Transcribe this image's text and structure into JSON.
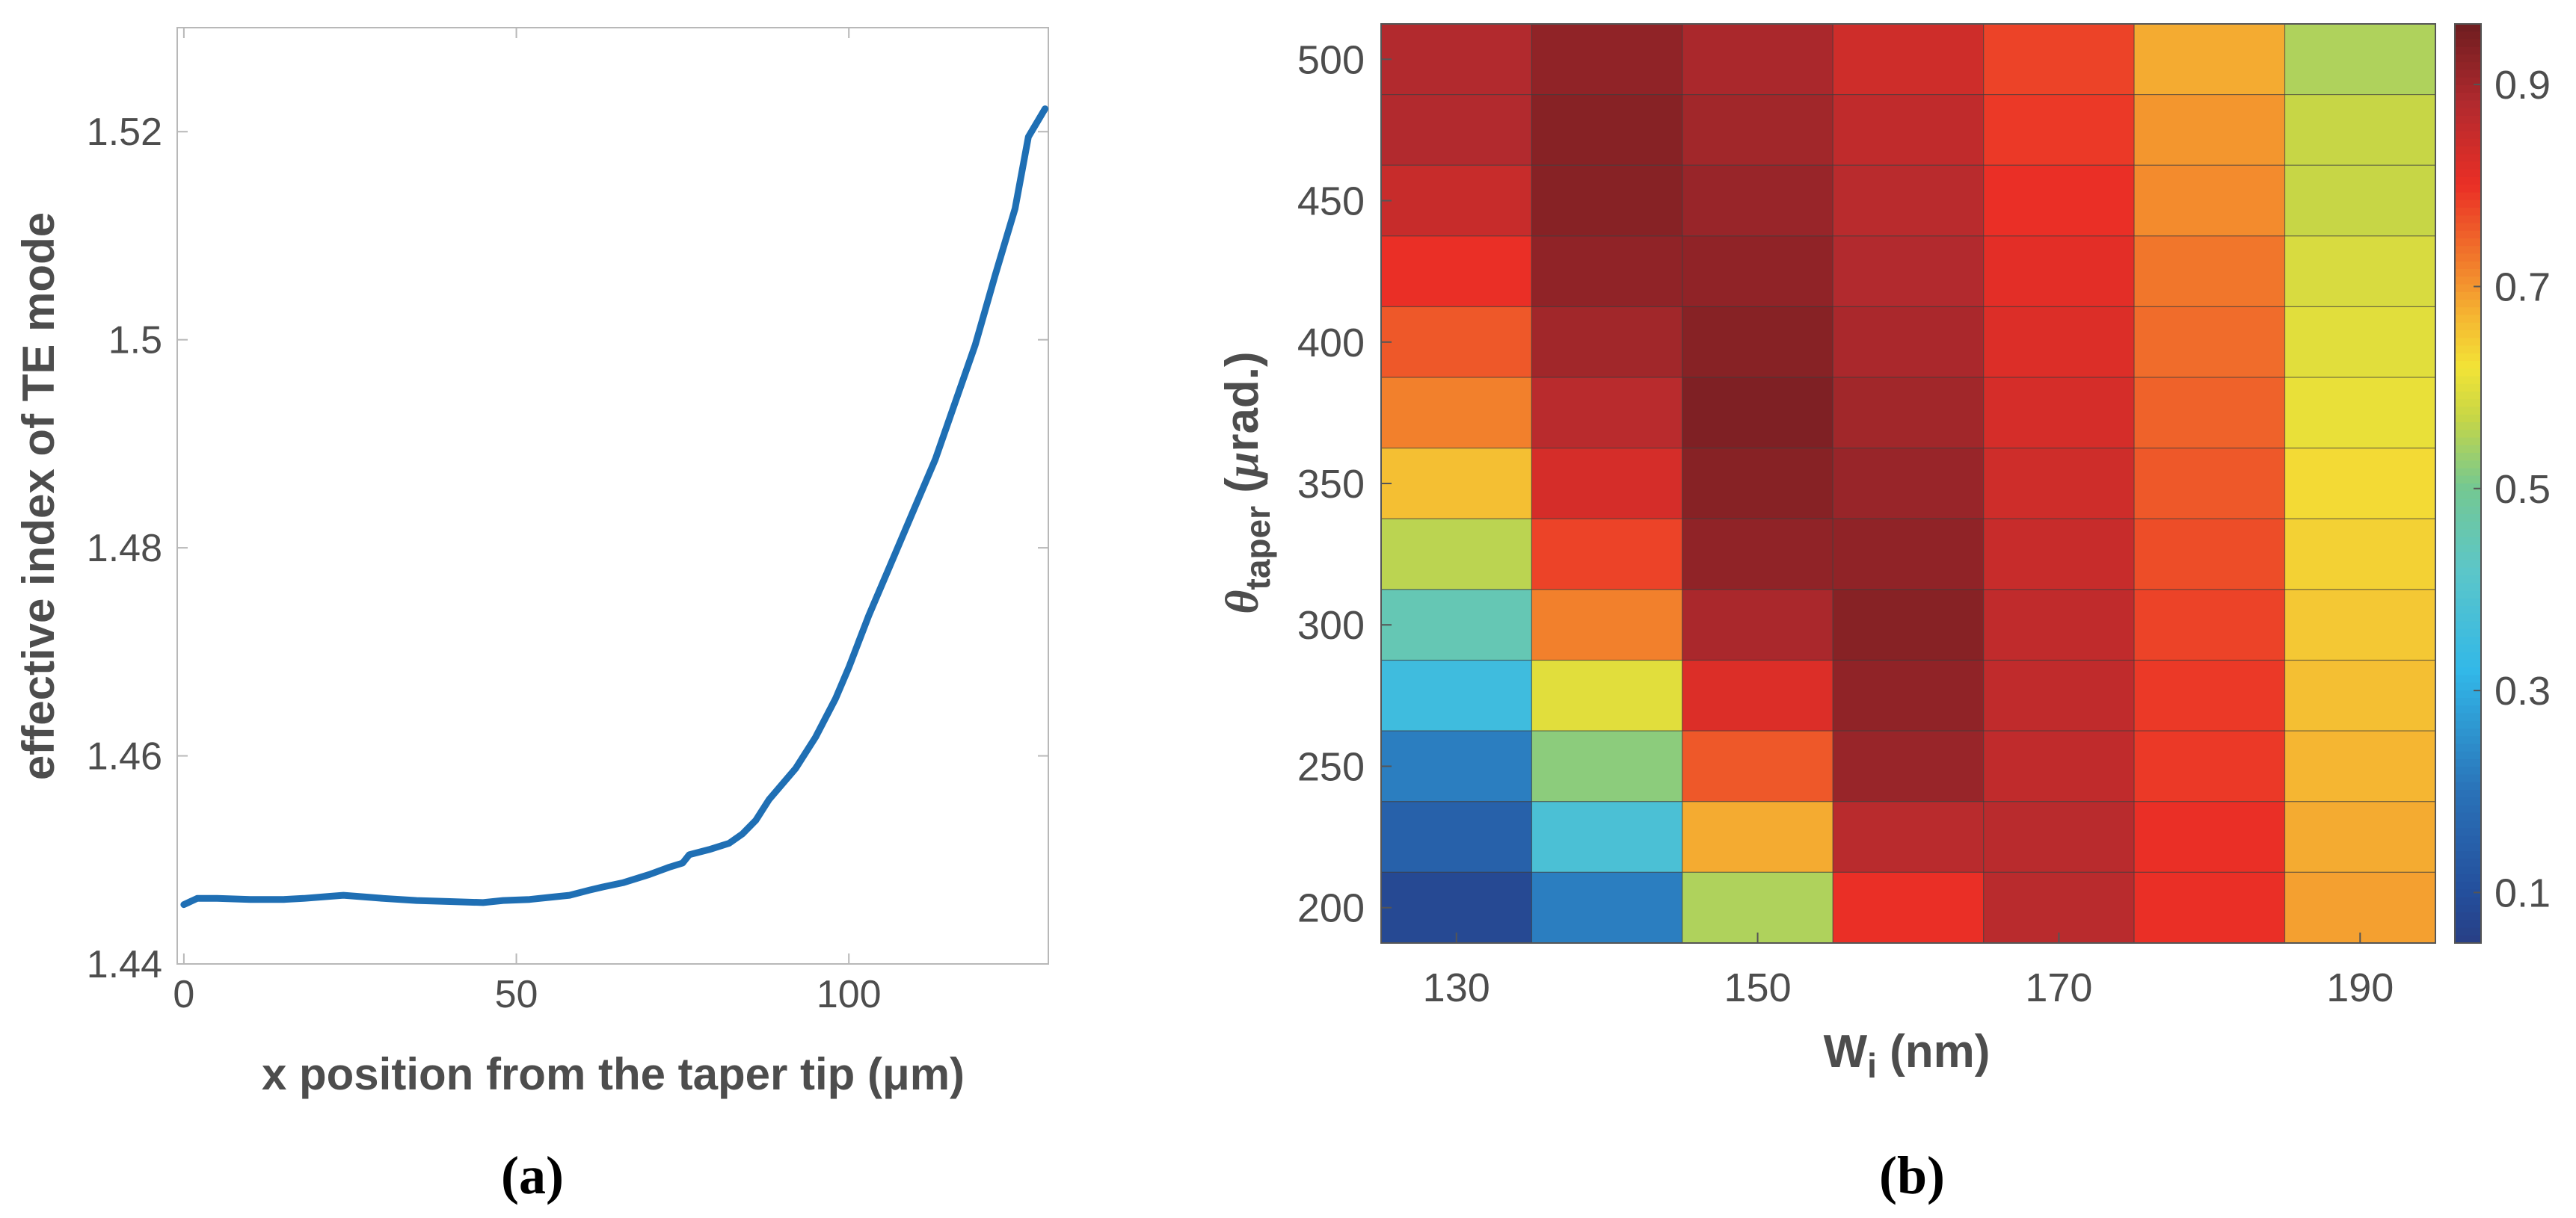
{
  "chart_data": [
    {
      "panel_label": "(a)",
      "type": "line",
      "title": "",
      "xlabel": "x position from the taper tip (μm)",
      "ylabel": "effective index of TE mode",
      "xlim": [
        -1,
        130
      ],
      "ylim": [
        1.44,
        1.53
      ],
      "xticks": [
        0,
        50,
        100
      ],
      "xtick_labels": [
        "0",
        "50",
        "100"
      ],
      "yticks": [
        1.44,
        1.46,
        1.48,
        1.5,
        1.52
      ],
      "ytick_labels": [
        "1.44",
        "1.46",
        "1.48",
        "1.5",
        "1.52"
      ],
      "grid": false,
      "line_color": "#1f6fb4",
      "series": [
        {
          "name": "effective index",
          "x": [
            0,
            2,
            5,
            10,
            15,
            18,
            22,
            24,
            28,
            30,
            35,
            40,
            45,
            48,
            52,
            55,
            58,
            61,
            63,
            66,
            70,
            73,
            75,
            76,
            79,
            82,
            84,
            86,
            88,
            92,
            95,
            98,
            100,
            103,
            106,
            110,
            113,
            116,
            119,
            122,
            125,
            127,
            129.5
          ],
          "y": [
            1.4457,
            1.4463,
            1.4463,
            1.4462,
            1.4462,
            1.4463,
            1.4465,
            1.4466,
            1.4464,
            1.4463,
            1.4461,
            1.446,
            1.4459,
            1.4461,
            1.4462,
            1.4464,
            1.4466,
            1.4471,
            1.4474,
            1.4478,
            1.4486,
            1.4493,
            1.4497,
            1.4505,
            1.451,
            1.4516,
            1.4525,
            1.4538,
            1.4558,
            1.4588,
            1.4618,
            1.4655,
            1.4685,
            1.4735,
            1.478,
            1.484,
            1.4885,
            1.494,
            1.4995,
            1.5062,
            1.5126,
            1.5195,
            1.5222
          ]
        }
      ]
    },
    {
      "panel_label": "(b)",
      "type": "heatmap",
      "title": "",
      "xlabel_main": "W",
      "xlabel_sub": "i",
      "xlabel_tail": " (nm)",
      "ylabel_symbol": "θ",
      "ylabel_sub": "taper",
      "ylabel_tail_open": " (",
      "ylabel_mu": "μ",
      "ylabel_tail_close": "rad.)",
      "x_categories": [
        130,
        140,
        150,
        160,
        170,
        180,
        190
      ],
      "y_categories": [
        500,
        475,
        450,
        425,
        400,
        375,
        350,
        325,
        300,
        275,
        250,
        225,
        200
      ],
      "xticks": [
        130,
        150,
        170,
        190
      ],
      "xtick_labels": [
        "130",
        "150",
        "170",
        "190"
      ],
      "yticks": [
        500,
        450,
        400,
        350,
        300,
        250,
        200
      ],
      "ytick_labels": [
        "500",
        "450",
        "400",
        "350",
        "300",
        "250",
        "200"
      ],
      "values": [
        [
          0.88,
          0.92,
          0.89,
          0.84,
          0.78,
          0.68,
          0.55
        ],
        [
          0.88,
          0.93,
          0.9,
          0.86,
          0.79,
          0.7,
          0.57
        ],
        [
          0.85,
          0.93,
          0.91,
          0.87,
          0.8,
          0.71,
          0.57
        ],
        [
          0.8,
          0.92,
          0.92,
          0.88,
          0.81,
          0.73,
          0.59
        ],
        [
          0.76,
          0.9,
          0.93,
          0.89,
          0.82,
          0.74,
          0.6
        ],
        [
          0.72,
          0.87,
          0.94,
          0.9,
          0.83,
          0.75,
          0.61
        ],
        [
          0.66,
          0.83,
          0.93,
          0.91,
          0.84,
          0.76,
          0.63
        ],
        [
          0.56,
          0.78,
          0.92,
          0.92,
          0.85,
          0.77,
          0.64
        ],
        [
          0.45,
          0.72,
          0.89,
          0.93,
          0.86,
          0.78,
          0.65
        ],
        [
          0.35,
          0.6,
          0.82,
          0.92,
          0.86,
          0.79,
          0.66
        ],
        [
          0.22,
          0.52,
          0.76,
          0.91,
          0.86,
          0.79,
          0.67
        ],
        [
          0.15,
          0.38,
          0.68,
          0.87,
          0.87,
          0.8,
          0.68
        ],
        [
          0.08,
          0.22,
          0.55,
          0.8,
          0.87,
          0.8,
          0.69
        ]
      ],
      "colorbar_range": [
        0.05,
        0.96
      ],
      "colorbar_ticks": [
        0.1,
        0.3,
        0.5,
        0.7,
        0.9
      ],
      "colorbar_tick_labels": [
        "0.1",
        "0.3",
        "0.5",
        "0.7",
        "0.9"
      ],
      "colormap_stops": [
        {
          "v": 0.0,
          "color": "#2c2f6e"
        },
        {
          "v": 0.1,
          "color": "#244f9c"
        },
        {
          "v": 0.2,
          "color": "#2a72b8"
        },
        {
          "v": 0.32,
          "color": "#32b8e8"
        },
        {
          "v": 0.42,
          "color": "#5cc6c8"
        },
        {
          "v": 0.5,
          "color": "#74c892"
        },
        {
          "v": 0.57,
          "color": "#c7d646"
        },
        {
          "v": 0.62,
          "color": "#f2e336"
        },
        {
          "v": 0.67,
          "color": "#f5b632"
        },
        {
          "v": 0.72,
          "color": "#f2802c"
        },
        {
          "v": 0.8,
          "color": "#ea2f26"
        },
        {
          "v": 0.88,
          "color": "#b22a2e"
        },
        {
          "v": 0.96,
          "color": "#6e1d20"
        }
      ]
    }
  ]
}
